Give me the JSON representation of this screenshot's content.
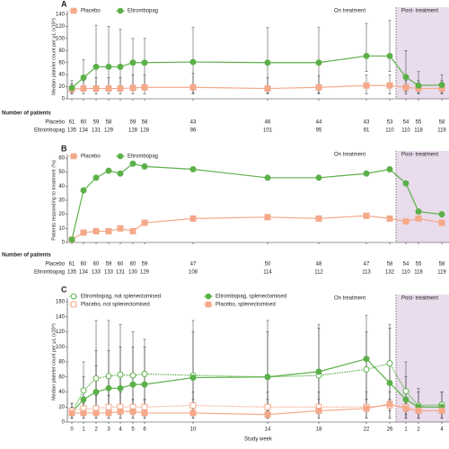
{
  "chart_data": [
    {
      "type": "line",
      "panel_label": "A",
      "ylabel": "Median platelet count per μL (x10⁹)",
      "annotations": [
        "On treatment",
        "Post- treatment"
      ],
      "categories": [
        null,
        null,
        null,
        null,
        null,
        null,
        null,
        null,
        null,
        null,
        null,
        null,
        null,
        null,
        null
      ],
      "ylim": [
        0,
        140
      ],
      "yticks": [
        0,
        20,
        40,
        60,
        80,
        100,
        120,
        140
      ],
      "series": [
        {
          "name": "Placebo",
          "color": "#f4a98a",
          "marker": "square",
          "filled": true,
          "linestyle": "solid",
          "values": [
            16,
            17,
            17,
            17,
            17,
            18,
            19,
            19,
            17,
            19,
            22,
            22,
            19,
            17,
            17
          ],
          "upper": [
            25,
            30,
            35,
            35,
            35,
            40,
            40,
            42,
            35,
            38,
            40,
            40,
            30,
            30,
            30
          ],
          "lower": [
            8,
            8,
            8,
            8,
            8,
            8,
            8,
            8,
            8,
            8,
            8,
            8,
            8,
            8,
            8
          ]
        },
        {
          "name": "Eltrombopag",
          "color": "#5cb04a",
          "marker": "circle",
          "filled": true,
          "linestyle": "solid",
          "values": [
            18,
            35,
            53,
            53,
            53,
            60,
            60,
            61,
            60,
            60,
            71,
            71,
            36,
            22,
            23
          ],
          "upper": [
            30,
            65,
            122,
            120,
            115,
            100,
            100,
            118,
            118,
            118,
            125,
            130,
            80,
            45,
            40
          ],
          "lower": [
            10,
            15,
            20,
            20,
            20,
            20,
            20,
            10,
            10,
            10,
            45,
            45,
            12,
            10,
            10
          ]
        }
      ],
      "patients": {
        "title": "Number of patients",
        "rows": [
          {
            "name": "Placebo",
            "values": [
              61,
              60,
              59,
              58,
              null,
              59,
              58,
              43,
              46,
              44,
              43,
              53,
              54,
              55,
              58
            ]
          },
          {
            "name": "Eltrombopag",
            "values": [
              135,
              134,
              131,
              129,
              null,
              128,
              128,
              96,
              101,
              95,
              91,
              110,
              110,
              118,
              119
            ]
          }
        ]
      }
    },
    {
      "type": "line",
      "panel_label": "B",
      "ylabel": "Patients responding to treatment (%)",
      "annotations": [
        "On treatment",
        "Post- treatment"
      ],
      "categories": [
        null,
        null,
        null,
        null,
        null,
        null,
        null,
        null,
        null,
        null,
        null,
        null,
        null,
        null,
        null
      ],
      "ylim": [
        0,
        60
      ],
      "yticks": [
        0,
        10,
        20,
        30,
        40,
        50,
        60
      ],
      "series": [
        {
          "name": "Placebo",
          "color": "#f4a98a",
          "marker": "square",
          "filled": true,
          "linestyle": "solid",
          "values": [
            2,
            7,
            8,
            8,
            10,
            8,
            14,
            17,
            18,
            17,
            19,
            17,
            15,
            17,
            14
          ]
        },
        {
          "name": "Eltrombopag",
          "color": "#5cb04a",
          "marker": "circle",
          "filled": true,
          "linestyle": "solid",
          "values": [
            2,
            37,
            46,
            51,
            49,
            56,
            54,
            52,
            46,
            46,
            49,
            52,
            42,
            22,
            20
          ]
        }
      ],
      "patients": {
        "title": "Number of patients",
        "rows": [
          {
            "name": "Placebo",
            "values": [
              61,
              60,
              60,
              59,
              60,
              60,
              59,
              47,
              50,
              48,
              47,
              58,
              54,
              55,
              58
            ]
          },
          {
            "name": "Eltrombopag",
            "values": [
              135,
              134,
              133,
              133,
              131,
              130,
              129,
              108,
              114,
              112,
              113,
              132,
              110,
              118,
              119
            ]
          }
        ]
      }
    },
    {
      "type": "line",
      "panel_label": "C",
      "ylabel": "Median platelet count per μL (x10⁹)",
      "xlabel": "Study week",
      "annotations": [
        "On treatment",
        "Post- treatment"
      ],
      "categories": [
        "0",
        "1",
        "2",
        "3",
        "4",
        "5",
        "6",
        "10",
        "14",
        "18",
        "22",
        "26",
        "1",
        "2",
        "4"
      ],
      "ylim": [
        0,
        160
      ],
      "yticks": [
        0,
        20,
        40,
        60,
        80,
        100,
        120,
        140,
        160
      ],
      "series": [
        {
          "name": "Eltrombopag, not splenectomised",
          "color": "#5cb04a",
          "marker": "circle",
          "filled": false,
          "linestyle": "dotted",
          "values": [
            13,
            42,
            58,
            61,
            63,
            62,
            64,
            62,
            60,
            62,
            70,
            78,
            41,
            22,
            23
          ],
          "upper": [
            25,
            80,
            135,
            135,
            130,
            120,
            110,
            135,
            135,
            125,
            120,
            130,
            60,
            40,
            40
          ],
          "lower": [
            5,
            20,
            20,
            20,
            20,
            20,
            20,
            15,
            10,
            20,
            30,
            30,
            10,
            5,
            5
          ]
        },
        {
          "name": "Eltrombopag, splenectomised",
          "color": "#5cb04a",
          "marker": "circle",
          "filled": true,
          "linestyle": "solid",
          "values": [
            13,
            30,
            40,
            45,
            45,
            50,
            50,
            59,
            60,
            67,
            84,
            52,
            30,
            20,
            20
          ],
          "upper": [
            20,
            60,
            95,
            95,
            100,
            100,
            100,
            120,
            120,
            130,
            142,
            125,
            80,
            45,
            40
          ],
          "lower": [
            5,
            10,
            10,
            10,
            15,
            15,
            15,
            15,
            15,
            15,
            15,
            15,
            5,
            5,
            5
          ]
        },
        {
          "name": "Placebo, not splenectomised",
          "color": "#f4a98a",
          "marker": "square",
          "filled": false,
          "linestyle": "dotted",
          "values": [
            15,
            18,
            18,
            20,
            20,
            20,
            20,
            22,
            20,
            20,
            20,
            22,
            20,
            15,
            15
          ],
          "upper": [
            25,
            30,
            75,
            60,
            60,
            30,
            30,
            40,
            40,
            40,
            40,
            40,
            30,
            25,
            25
          ],
          "lower": [
            5,
            5,
            5,
            5,
            5,
            5,
            5,
            5,
            5,
            5,
            5,
            5,
            5,
            5,
            5
          ]
        },
        {
          "name": "Placebo, splenectomised",
          "color": "#f4a98a",
          "marker": "square",
          "filled": true,
          "linestyle": "solid",
          "values": [
            12,
            12,
            12,
            12,
            14,
            14,
            12,
            12,
            10,
            15,
            18,
            24,
            18,
            15,
            15
          ],
          "upper": [
            20,
            25,
            35,
            35,
            40,
            30,
            30,
            30,
            30,
            30,
            30,
            30,
            25,
            20,
            20
          ],
          "lower": [
            5,
            5,
            5,
            5,
            5,
            5,
            5,
            5,
            5,
            5,
            5,
            5,
            5,
            5,
            5
          ]
        }
      ]
    }
  ]
}
